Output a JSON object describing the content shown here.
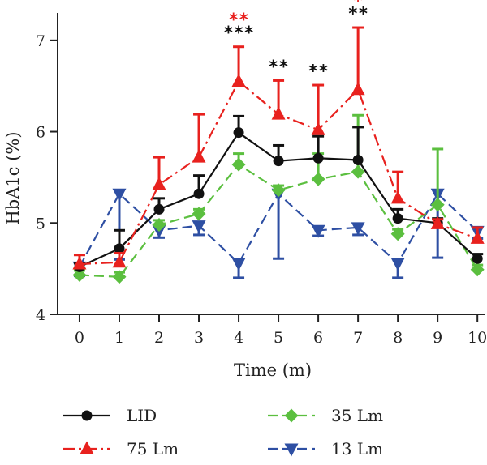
{
  "chart_data": {
    "type": "line",
    "title": "",
    "xlabel": "Time (m)",
    "ylabel": "HbA1c (%)",
    "xlim": [
      -0.55,
      10.2
    ],
    "ylim": [
      4,
      7.3
    ],
    "x": [
      0,
      1,
      2,
      3,
      4,
      5,
      6,
      7,
      8,
      9,
      10
    ],
    "xticks": [
      "0",
      "1",
      "2",
      "3",
      "4",
      "5",
      "6",
      "7",
      "8",
      "9",
      "10"
    ],
    "yticks": [
      "4",
      "5",
      "6",
      "7"
    ],
    "grid": false,
    "legend_position": "bottom",
    "series": [
      {
        "name": "LID",
        "color": "#111111",
        "marker": "circle",
        "dash": "solid",
        "values": [
          4.52,
          4.72,
          5.15,
          5.32,
          5.99,
          5.68,
          5.71,
          5.69,
          5.05,
          5.0,
          4.61
        ],
        "err_up": [
          0.04,
          0.2,
          0.12,
          0.2,
          0.18,
          0.17,
          0.24,
          0.36,
          0.1,
          0.05,
          0.05
        ],
        "err_down": [
          0,
          0,
          0,
          0,
          0,
          0,
          0,
          0,
          0,
          0,
          0
        ]
      },
      {
        "name": "35 Lm",
        "color": "#5bbf3f",
        "marker": "diamond",
        "dash": "dashed",
        "values": [
          4.43,
          4.41,
          4.98,
          5.1,
          5.64,
          5.36,
          5.48,
          5.56,
          4.88,
          5.2,
          4.49
        ],
        "err_up": [
          0.05,
          0.05,
          0.05,
          0.05,
          0.12,
          0.05,
          0.28,
          0.62,
          0.05,
          0.61,
          0.05
        ],
        "err_down": [
          0,
          0,
          0,
          0,
          0,
          0,
          0,
          0,
          0,
          0,
          0
        ]
      },
      {
        "name": "75 Lm",
        "color": "#e8211e",
        "marker": "triangle-up",
        "dash": "dash-dot",
        "values": [
          4.55,
          4.57,
          5.42,
          5.72,
          6.55,
          6.19,
          6.02,
          6.46,
          5.27,
          4.99,
          4.83
        ],
        "err_up": [
          0.1,
          0.1,
          0.3,
          0.47,
          0.38,
          0.37,
          0.49,
          0.68,
          0.29,
          0.05,
          0.12
        ],
        "err_down": [
          0,
          0,
          0,
          0,
          0,
          0,
          0,
          0,
          0,
          0,
          0
        ]
      },
      {
        "name": "13 Lm",
        "color": "#2e4fa3",
        "marker": "triangle-down",
        "dash": "dashed",
        "values": [
          4.52,
          5.32,
          4.92,
          4.97,
          4.56,
          5.32,
          4.92,
          4.95,
          4.56,
          5.32,
          4.91
        ],
        "err_up": [
          0,
          0,
          0,
          0,
          0,
          0,
          0,
          0,
          0,
          0,
          0
        ],
        "err_down": [
          0.1,
          0.72,
          0.08,
          0.1,
          0.16,
          0.71,
          0.06,
          0.08,
          0.16,
          0.7,
          0.08
        ]
      }
    ],
    "annotations": [
      {
        "x": 4,
        "text": "**",
        "color": "#e8211e",
        "row": 1
      },
      {
        "x": 4,
        "text": "***",
        "color": "#111111",
        "row": 0
      },
      {
        "x": 5,
        "text": "**",
        "color": "#111111",
        "row": 0
      },
      {
        "x": 6,
        "text": "**",
        "color": "#111111",
        "row": 0
      },
      {
        "x": 7,
        "text": "*",
        "color": "#e8211e",
        "row": 1
      },
      {
        "x": 7,
        "text": "**",
        "color": "#111111",
        "row": 0
      }
    ]
  }
}
